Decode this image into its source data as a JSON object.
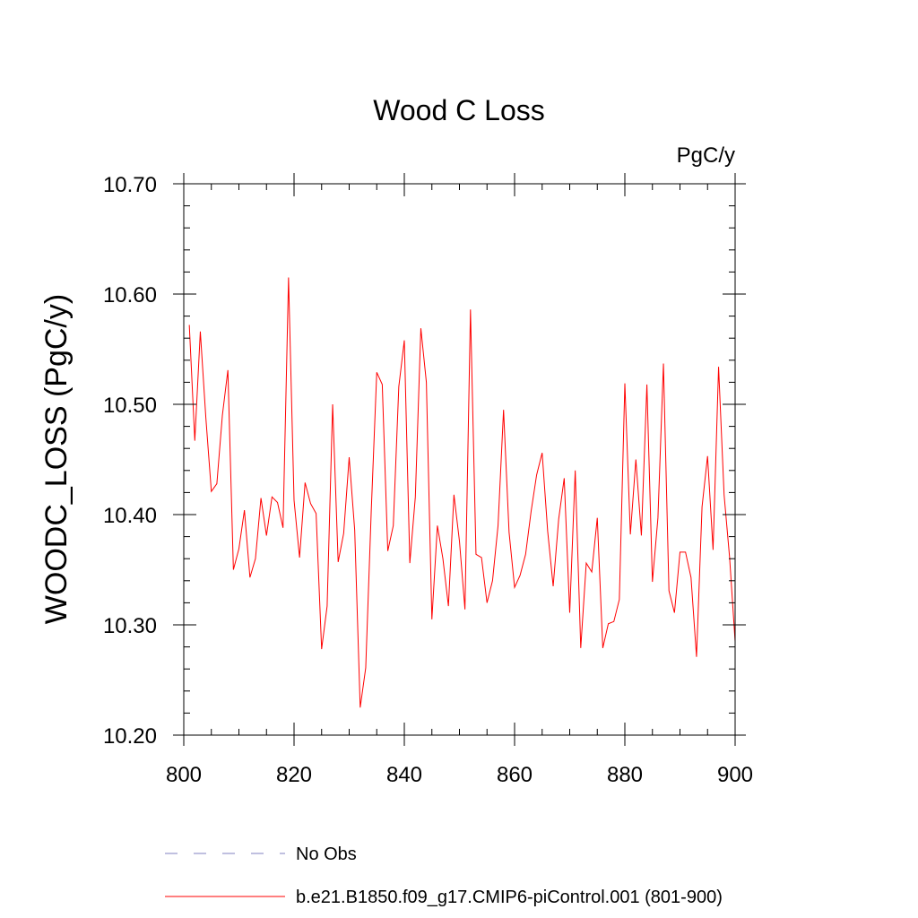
{
  "chart_data": {
    "type": "line",
    "title": "Wood C Loss",
    "units": "PgC/y",
    "ylabel": "WOODC_LOSS  (PgC/y)",
    "xlabel": "",
    "xlim": [
      800,
      900
    ],
    "ylim": [
      10.2,
      10.7
    ],
    "xticks": [
      800,
      820,
      840,
      860,
      880,
      900
    ],
    "xtick_labels": [
      "800",
      "820",
      "840",
      "860",
      "880",
      "900"
    ],
    "yticks": [
      10.2,
      10.3,
      10.4,
      10.5,
      10.6,
      10.7
    ],
    "ytick_labels": [
      "10.20",
      "10.30",
      "10.40",
      "10.50",
      "10.60",
      "10.70"
    ],
    "grid": false,
    "legend_position": "bottom",
    "legend": [
      {
        "label": "No Obs",
        "color": "#8080c0",
        "style": "dashed"
      },
      {
        "label": "b.e21.B1850.f09_g17.CMIP6-piControl.001 (801-900)",
        "color": "#ff0000",
        "style": "solid"
      }
    ],
    "series": [
      {
        "name": "b.e21.B1850.f09_g17.CMIP6-piControl.001 (801-900)",
        "color": "#ff0000",
        "x": [
          801,
          802,
          803,
          804,
          805,
          806,
          807,
          808,
          809,
          810,
          811,
          812,
          813,
          814,
          815,
          816,
          817,
          818,
          819,
          820,
          821,
          822,
          823,
          824,
          825,
          826,
          827,
          828,
          829,
          830,
          831,
          832,
          833,
          834,
          835,
          836,
          837,
          838,
          839,
          840,
          841,
          842,
          843,
          844,
          845,
          846,
          847,
          848,
          849,
          850,
          851,
          852,
          853,
          854,
          855,
          856,
          857,
          858,
          859,
          860,
          861,
          862,
          863,
          864,
          865,
          866,
          867,
          868,
          869,
          870,
          871,
          872,
          873,
          874,
          875,
          876,
          877,
          878,
          879,
          880,
          881,
          882,
          883,
          884,
          885,
          886,
          887,
          888,
          889,
          890,
          891,
          892,
          893,
          894,
          895,
          896,
          897,
          898,
          899,
          900
        ],
        "values": [
          10.572,
          10.467,
          10.566,
          10.488,
          10.421,
          10.428,
          10.49,
          10.531,
          10.35,
          10.369,
          10.404,
          10.343,
          10.36,
          10.415,
          10.381,
          10.416,
          10.411,
          10.388,
          10.615,
          10.413,
          10.361,
          10.429,
          10.41,
          10.401,
          10.278,
          10.317,
          10.5,
          10.357,
          10.383,
          10.452,
          10.386,
          10.225,
          10.261,
          10.403,
          10.529,
          10.518,
          10.367,
          10.39,
          10.516,
          10.558,
          10.356,
          10.416,
          10.569,
          10.52,
          10.305,
          10.39,
          10.36,
          10.317,
          10.418,
          10.376,
          10.314,
          10.586,
          10.364,
          10.361,
          10.32,
          10.34,
          10.39,
          10.495,
          10.384,
          10.334,
          10.345,
          10.364,
          10.403,
          10.436,
          10.456,
          10.385,
          10.335,
          10.396,
          10.433,
          10.311,
          10.44,
          10.279,
          10.356,
          10.348,
          10.397,
          10.279,
          10.301,
          10.303,
          10.323,
          10.519,
          10.382,
          10.45,
          10.381,
          10.518,
          10.339,
          10.397,
          10.537,
          10.331,
          10.311,
          10.366,
          10.366,
          10.343,
          10.271,
          10.407,
          10.453,
          10.368,
          10.534,
          10.418,
          10.361,
          10.285
        ]
      }
    ]
  }
}
